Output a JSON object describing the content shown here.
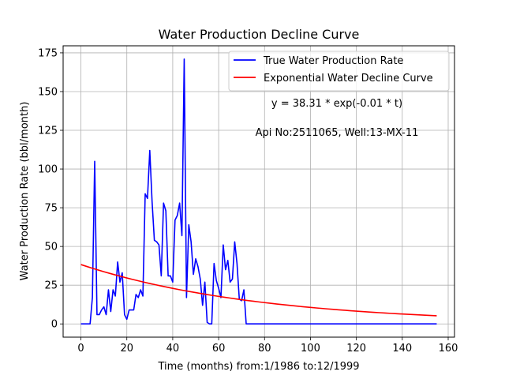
{
  "chart_data": {
    "type": "line",
    "title": "Water Production Decline Curve",
    "xlabel": "Time (months) from:1/1986 to:12/1999",
    "ylabel": "Water Production Rate (bbl/month)",
    "xlim": [
      -7.75,
      162.75
    ],
    "ylim": [
      -8.55,
      179.55
    ],
    "xticks": [
      0,
      20,
      40,
      60,
      80,
      100,
      120,
      140,
      160
    ],
    "yticks": [
      0,
      25,
      50,
      75,
      100,
      125,
      150,
      175
    ],
    "grid": true,
    "legend_position": "top-right",
    "series": [
      {
        "name": "True Water Production Rate",
        "color": "#0000ff",
        "kind": "data",
        "points": [
          [
            0,
            0
          ],
          [
            1,
            0
          ],
          [
            2,
            0
          ],
          [
            3,
            0
          ],
          [
            4,
            0
          ],
          [
            5,
            17
          ],
          [
            6,
            105
          ],
          [
            7,
            6
          ],
          [
            8,
            6
          ],
          [
            9,
            9
          ],
          [
            10,
            11
          ],
          [
            11,
            6
          ],
          [
            12,
            22
          ],
          [
            13,
            8
          ],
          [
            14,
            22
          ],
          [
            15,
            18
          ],
          [
            16,
            40
          ],
          [
            17,
            27
          ],
          [
            18,
            33
          ],
          [
            19,
            6
          ],
          [
            20,
            3
          ],
          [
            21,
            9
          ],
          [
            22,
            9
          ],
          [
            23,
            9
          ],
          [
            24,
            19
          ],
          [
            25,
            17
          ],
          [
            26,
            22
          ],
          [
            27,
            18
          ],
          [
            28,
            84
          ],
          [
            29,
            81
          ],
          [
            30,
            112
          ],
          [
            31,
            79
          ],
          [
            32,
            54
          ],
          [
            33,
            53
          ],
          [
            34,
            51
          ],
          [
            35,
            31
          ],
          [
            36,
            78
          ],
          [
            37,
            73
          ],
          [
            38,
            31
          ],
          [
            39,
            31
          ],
          [
            40,
            27
          ],
          [
            41,
            67
          ],
          [
            42,
            70
          ],
          [
            43,
            78
          ],
          [
            44,
            57
          ],
          [
            45,
            171
          ],
          [
            46,
            17
          ],
          [
            47,
            64
          ],
          [
            48,
            53
          ],
          [
            49,
            32
          ],
          [
            50,
            42
          ],
          [
            51,
            37
          ],
          [
            52,
            29
          ],
          [
            53,
            12
          ],
          [
            54,
            27
          ],
          [
            55,
            1
          ],
          [
            56,
            0
          ],
          [
            57,
            0
          ],
          [
            58,
            39
          ],
          [
            59,
            28
          ],
          [
            60,
            23
          ],
          [
            61,
            17
          ],
          [
            62,
            51
          ],
          [
            63,
            35
          ],
          [
            64,
            41
          ],
          [
            65,
            27
          ],
          [
            66,
            29
          ],
          [
            67,
            53
          ],
          [
            68,
            39
          ],
          [
            69,
            16
          ],
          [
            70,
            15
          ],
          [
            71,
            22
          ],
          [
            72,
            0
          ],
          [
            80,
            0
          ],
          [
            100,
            0
          ],
          [
            120,
            0
          ],
          [
            140,
            0
          ],
          [
            155,
            0
          ]
        ]
      },
      {
        "name": "Exponential Water Decline Curve",
        "color": "#ff0000",
        "kind": "exponential",
        "a": 38.31,
        "b": 0.0128,
        "x_range": [
          0,
          155
        ]
      }
    ],
    "annotations": [
      "y = 38.31 * exp(-0.01 * t)",
      "Api No:2511065, Well:13-MX-11"
    ]
  }
}
